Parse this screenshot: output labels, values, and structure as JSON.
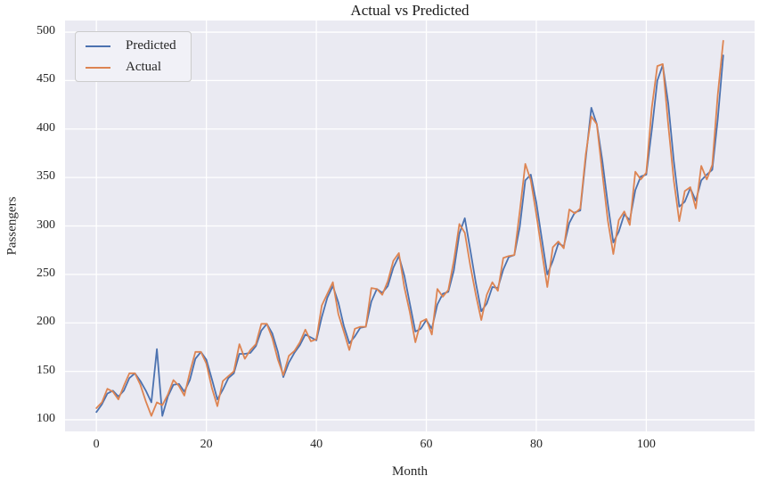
{
  "figure_title": "Actual vs Predicted",
  "chart_data": {
    "type": "line",
    "title": "Actual vs Predicted",
    "xlabel": "Month",
    "ylabel": "Passengers",
    "x_ticks": [
      0,
      20,
      40,
      60,
      80,
      100
    ],
    "y_ticks": [
      100,
      150,
      200,
      250,
      300,
      350,
      400,
      450,
      500
    ],
    "xlim": [
      -5.7,
      119.7
    ],
    "ylim": [
      88,
      512
    ],
    "grid": true,
    "plot_bg_color": "#eaeaf2",
    "grid_color": "#ffffff",
    "legend_position": "upper-left",
    "x": [
      0,
      1,
      2,
      3,
      4,
      5,
      6,
      7,
      8,
      9,
      10,
      11,
      12,
      13,
      14,
      15,
      16,
      17,
      18,
      19,
      20,
      21,
      22,
      23,
      24,
      25,
      26,
      27,
      28,
      29,
      30,
      31,
      32,
      33,
      34,
      35,
      36,
      37,
      38,
      39,
      40,
      41,
      42,
      43,
      44,
      45,
      46,
      47,
      48,
      49,
      50,
      51,
      52,
      53,
      54,
      55,
      56,
      57,
      58,
      59,
      60,
      61,
      62,
      63,
      64,
      65,
      66,
      67,
      68,
      69,
      70,
      71,
      72,
      73,
      74,
      75,
      76,
      77,
      78,
      79,
      80,
      81,
      82,
      83,
      84,
      85,
      86,
      87,
      88,
      89,
      90,
      91,
      92,
      93,
      94,
      95,
      96,
      97,
      98,
      99,
      100,
      101,
      102,
      103,
      104,
      105,
      106,
      107,
      108,
      109,
      110,
      111,
      112,
      113,
      114
    ],
    "series": [
      {
        "name": "Predicted",
        "color": "#4C72B0",
        "values": [
          108,
          116,
          127,
          130,
          124,
          130,
          143,
          148,
          140,
          130,
          118,
          173,
          104,
          124,
          136,
          137,
          129,
          141,
          163,
          170,
          162,
          142,
          121,
          131,
          143,
          148,
          168,
          168,
          169,
          176,
          192,
          199,
          189,
          170,
          144,
          159,
          169,
          177,
          188,
          185,
          182,
          206,
          226,
          238,
          221,
          197,
          179,
          186,
          195,
          196,
          222,
          235,
          231,
          238,
          257,
          269,
          249,
          220,
          191,
          194,
          203,
          194,
          219,
          230,
          232,
          254,
          292,
          308,
          275,
          241,
          212,
          220,
          237,
          236,
          255,
          268,
          270,
          299,
          347,
          353,
          324,
          287,
          250,
          264,
          282,
          279,
          303,
          314,
          316,
          370,
          422,
          405,
          368,
          323,
          283,
          294,
          312,
          306,
          337,
          351,
          353,
          399,
          450,
          466,
          426,
          367,
          320,
          325,
          339,
          326,
          347,
          353,
          358,
          410,
          476
        ]
      },
      {
        "name": "Actual",
        "color": "#DD8452",
        "values": [
          112,
          118,
          132,
          129,
          121,
          135,
          148,
          148,
          136,
          119,
          104,
          118,
          115,
          126,
          141,
          135,
          125,
          149,
          170,
          170,
          158,
          133,
          114,
          140,
          145,
          150,
          178,
          163,
          172,
          178,
          199,
          199,
          184,
          162,
          146,
          166,
          171,
          180,
          193,
          181,
          183,
          218,
          230,
          242,
          209,
          191,
          172,
          194,
          196,
          196,
          236,
          235,
          229,
          243,
          264,
          272,
          237,
          211,
          180,
          201,
          204,
          188,
          235,
          227,
          234,
          264,
          302,
          293,
          259,
          229,
          203,
          229,
          242,
          233,
          267,
          269,
          270,
          315,
          364,
          347,
          312,
          274,
          237,
          278,
          284,
          277,
          317,
          313,
          318,
          374,
          413,
          405,
          355,
          306,
          271,
          306,
          315,
          301,
          356,
          348,
          355,
          422,
          465,
          467,
          404,
          347,
          305,
          336,
          340,
          318,
          362,
          348,
          363,
          435,
          491
        ]
      }
    ]
  }
}
